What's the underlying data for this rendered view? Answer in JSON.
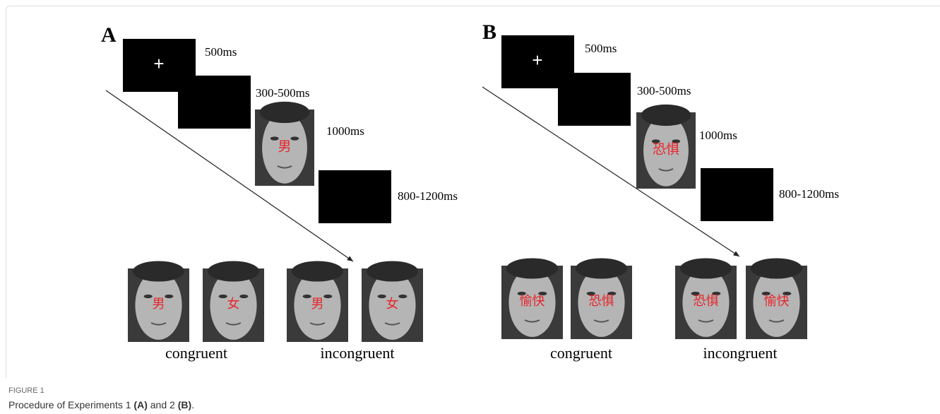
{
  "panels": [
    {
      "label": "A",
      "fixation": "+",
      "timings": [
        "500ms",
        "300-500ms",
        "1000ms",
        "800-1200ms"
      ],
      "stimulus_word": "男",
      "examples": [
        {
          "group": "congruent",
          "words": [
            "男",
            "女"
          ]
        },
        {
          "group": "incongruent",
          "words": [
            "男",
            "女"
          ]
        }
      ]
    },
    {
      "label": "B",
      "fixation": "+",
      "timings": [
        "500ms",
        "300-500ms",
        "1000ms",
        "800-1200ms"
      ],
      "stimulus_word": "恐惧",
      "examples": [
        {
          "group": "congruent",
          "words": [
            "愉快",
            "恐惧"
          ]
        },
        {
          "group": "incongruent",
          "words": [
            "恐惧",
            "愉快"
          ]
        }
      ]
    }
  ],
  "caption": {
    "figure_label": "FIGURE 1",
    "text_parts": [
      {
        "text": "Procedure of Experiments 1 ",
        "bold": false
      },
      {
        "text": "(A)",
        "bold": true
      },
      {
        "text": " and 2 ",
        "bold": false
      },
      {
        "text": "(B)",
        "bold": true
      },
      {
        "text": ".",
        "bold": false
      }
    ]
  }
}
